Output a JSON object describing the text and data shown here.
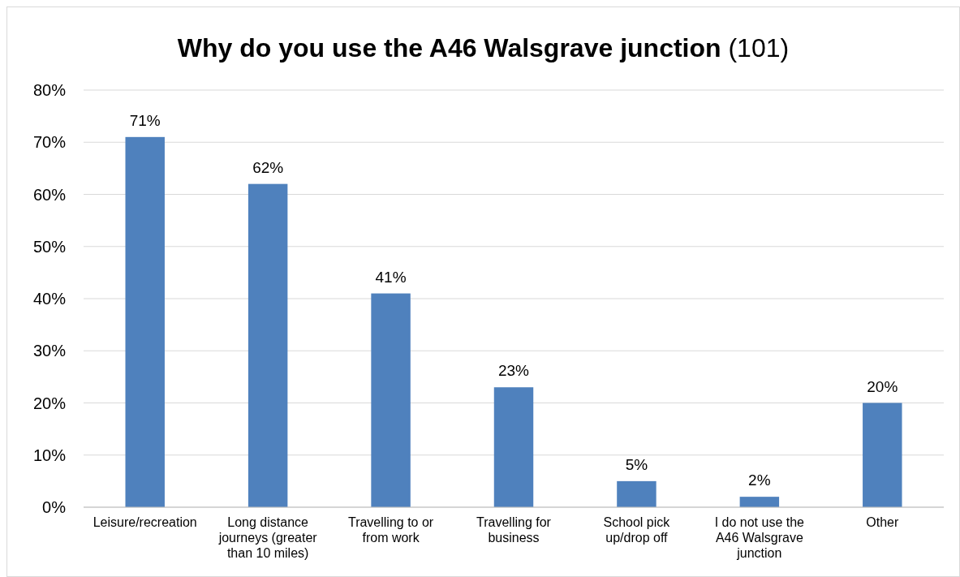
{
  "chart_data": {
    "type": "bar",
    "title": "Why do you use the A46 Walsgrave junction",
    "subtitle": "(101)",
    "categories": [
      "Leisure/recreation",
      "Long distance journeys (greater than 10 miles)",
      "Travelling to or from work",
      "Travelling for business",
      "School pick up/drop off",
      "I do not use the A46 Walsgrave junction",
      "Other"
    ],
    "values": [
      71,
      62,
      41,
      23,
      5,
      2,
      20
    ],
    "value_labels": [
      "71%",
      "62%",
      "41%",
      "23%",
      "5%",
      "2%",
      "20%"
    ],
    "color": "#4f81bd",
    "ylim": [
      0,
      80
    ],
    "yticks": [
      {
        "value": 0,
        "label": "0%"
      },
      {
        "value": 10,
        "label": "10%"
      },
      {
        "value": 20,
        "label": "20%"
      },
      {
        "value": 30,
        "label": "30%"
      },
      {
        "value": 40,
        "label": "40%"
      },
      {
        "value": 50,
        "label": "50%"
      },
      {
        "value": 60,
        "label": "60%"
      },
      {
        "value": 70,
        "label": "70%"
      },
      {
        "value": 80,
        "label": "80%"
      }
    ],
    "grid": "y"
  }
}
